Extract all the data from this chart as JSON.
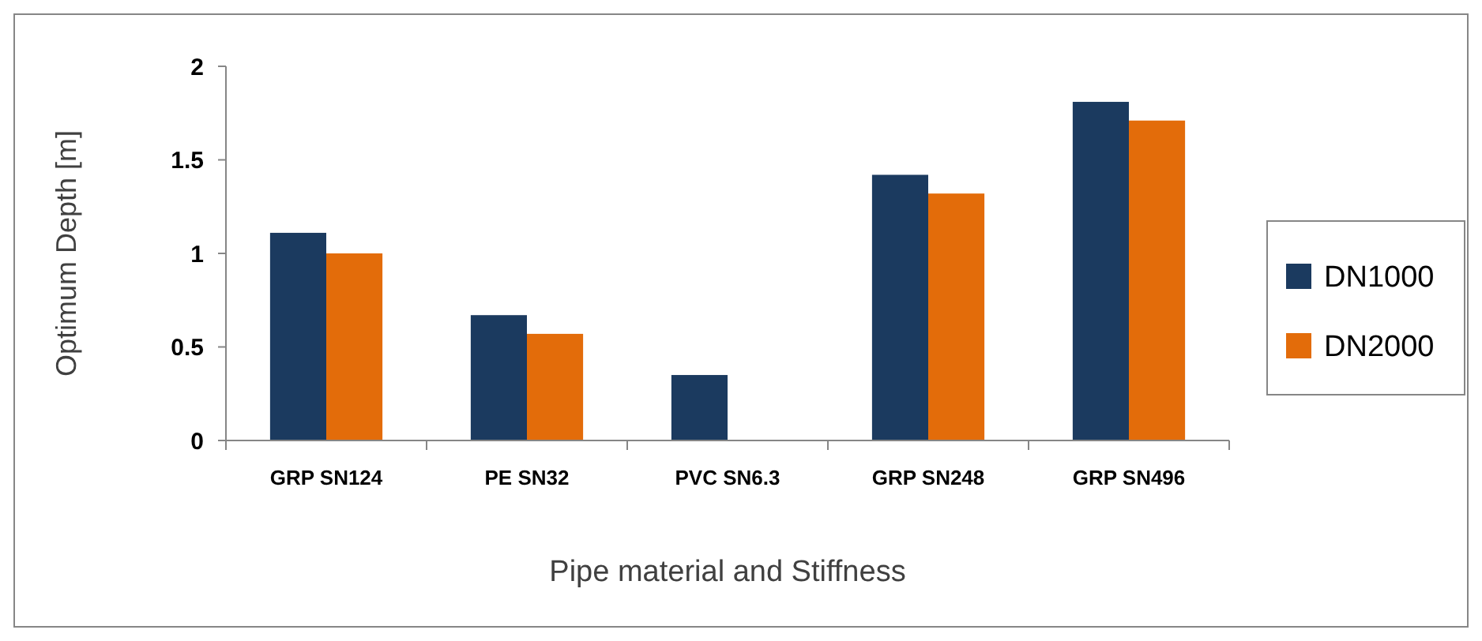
{
  "chart_data": {
    "type": "bar",
    "xlabel": "Pipe material and Stiffness",
    "ylabel": "Optimum Depth [m]",
    "categories": [
      "GRP SN124",
      "PE SN32",
      "PVC SN6.3",
      "GRP SN248",
      "GRP SN496"
    ],
    "series": [
      {
        "name": "DN1000",
        "color": "#1b3a5f",
        "values": [
          1.11,
          0.67,
          0.35,
          1.42,
          1.81
        ]
      },
      {
        "name": "DN2000",
        "color": "#e36c0a",
        "values": [
          1.0,
          0.57,
          null,
          1.32,
          1.71
        ]
      }
    ],
    "ylim": [
      0,
      2
    ],
    "yticks": [
      0,
      0.5,
      1,
      1.5,
      2
    ],
    "grid": false,
    "legend": "right"
  }
}
